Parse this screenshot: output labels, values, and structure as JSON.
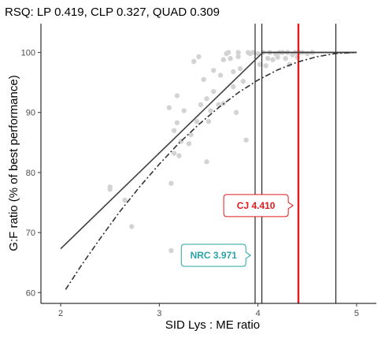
{
  "chart_data": {
    "type": "scatter",
    "title": "RSQ: LP 0.419, CLP 0.327, QUAD 0.309",
    "xlabel": "SID Lys : ME ratio",
    "ylabel": "G:F ratio (% of best performance)",
    "xlim": [
      1.8,
      5.2
    ],
    "ylim": [
      58.2,
      104.8
    ],
    "xticks": [
      "2",
      "3",
      "4",
      "5"
    ],
    "yticks": [
      "60",
      "70",
      "80",
      "90",
      "100"
    ],
    "grid": false,
    "points": {
      "color": "#d3d3d3",
      "x": [
        2.5,
        2.5,
        2.65,
        2.72,
        3.1,
        3.12,
        3.12,
        3.15,
        3.15,
        3.18,
        3.18,
        3.2,
        3.22,
        3.25,
        3.3,
        3.32,
        3.35,
        3.38,
        3.4,
        3.42,
        3.45,
        3.48,
        3.48,
        3.5,
        3.52,
        3.55,
        3.55,
        3.6,
        3.62,
        3.65,
        3.65,
        3.68,
        3.7,
        3.72,
        3.75,
        3.75,
        3.78,
        3.8,
        3.8,
        3.82,
        3.85,
        3.88,
        3.9,
        3.92,
        3.95,
        3.98,
        4.0,
        4.02,
        4.05,
        4.08,
        4.1,
        4.12,
        4.15,
        4.18,
        4.2,
        4.22,
        4.25,
        4.28,
        4.3,
        4.32,
        4.35,
        4.38,
        4.4,
        4.42,
        4.45,
        4.5,
        4.55
      ],
      "y": [
        77.2,
        77.6,
        75.4,
        71.0,
        90.8,
        78.2,
        67.0,
        87.0,
        83.2,
        88.3,
        92.8,
        82.8,
        85.2,
        90.3,
        84.8,
        86.3,
        98.5,
        88.5,
        99.3,
        91.3,
        95.5,
        81.8,
        92.3,
        88.5,
        90.3,
        93.5,
        97.0,
        91.3,
        96.2,
        98.8,
        91.5,
        99.8,
        100.0,
        99.0,
        94.3,
        96.8,
        90.0,
        99.3,
        100.0,
        97.3,
        95.2,
        85.4,
        100.0,
        99.8,
        100.0,
        74.2,
        99.8,
        98.0,
        100.0,
        97.8,
        99.0,
        100.0,
        98.8,
        99.8,
        99.2,
        100.0,
        100.0,
        99.0,
        100.0,
        98.0,
        99.6,
        100.0,
        99.2,
        100.0,
        100.0,
        99.8,
        100.0
      ]
    },
    "series": [
      {
        "name": "LP",
        "style": "solid",
        "color": "#404040",
        "x": [
          2.0,
          4.05,
          5.0
        ],
        "y": [
          67.3,
          100.0,
          100.0
        ]
      },
      {
        "name": "CLP",
        "style": "solid",
        "color": "#404040",
        "x": [
          4.05,
          5.0
        ],
        "y": [
          100.0,
          100.0
        ]
      },
      {
        "name": "QUAD",
        "style": "dotdash",
        "color": "#333333",
        "x": [
          2.05,
          2.2,
          2.4,
          2.6,
          2.8,
          3.0,
          3.2,
          3.4,
          3.6,
          3.8,
          4.0,
          4.2,
          4.4,
          4.6,
          4.8,
          5.0
        ],
        "y": [
          60.5,
          64.3,
          69.0,
          73.5,
          77.6,
          81.4,
          84.9,
          88.0,
          90.8,
          93.3,
          95.4,
          97.1,
          98.4,
          99.3,
          99.85,
          100.0
        ]
      }
    ],
    "vlines": [
      {
        "x": 3.971,
        "color": "#000000"
      },
      {
        "x": 4.04,
        "color": "#000000"
      },
      {
        "x": 4.41,
        "color": "#e41a1c",
        "thick": true
      },
      {
        "x": 4.79,
        "color": "#000000"
      }
    ],
    "annotations": [
      {
        "text": "CJ 4.410",
        "x": 3.98,
        "y": 74.5,
        "color": "#e41a1c"
      },
      {
        "text": "NRC 3.971",
        "x": 3.55,
        "y": 66.2,
        "color": "#2aa5a5"
      }
    ]
  }
}
